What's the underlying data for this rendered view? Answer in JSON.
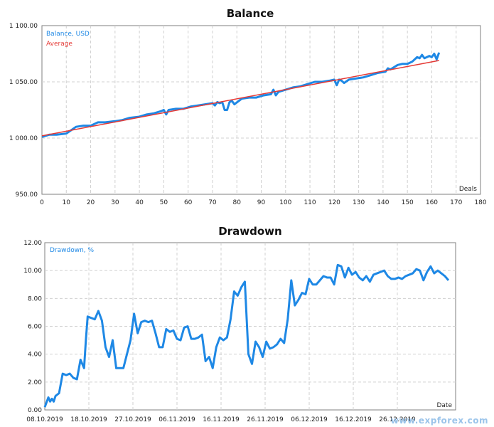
{
  "watermark": "www.expforex.com",
  "chart_data": [
    {
      "type": "line",
      "title": "Balance",
      "xlabel": "Deals",
      "ylabel": "",
      "xlim": [
        0,
        180
      ],
      "ylim": [
        950,
        1100
      ],
      "x_ticks": [
        "0",
        "10",
        "20",
        "30",
        "40",
        "50",
        "60",
        "70",
        "80",
        "90",
        "100",
        "110",
        "120",
        "130",
        "140",
        "150",
        "160",
        "170",
        "180"
      ],
      "y_ticks": [
        "950.00",
        "1 000.00",
        "1 050.00",
        "1 100.00"
      ],
      "grid": true,
      "legend_position": "top-left",
      "series": [
        {
          "name": "Balance, USD",
          "color": "#1e88e5",
          "x": [
            0,
            3,
            6,
            10,
            12,
            14,
            17,
            20,
            23,
            26,
            30,
            33,
            36,
            40,
            43,
            46,
            49,
            50,
            51,
            52,
            55,
            58,
            61,
            64,
            67,
            70,
            71,
            72,
            73,
            74,
            75,
            76,
            77,
            78,
            79,
            82,
            85,
            88,
            91,
            94,
            95,
            96,
            97,
            100,
            103,
            106,
            109,
            112,
            115,
            118,
            120,
            121,
            122,
            123,
            124,
            126,
            129,
            132,
            135,
            138,
            141,
            142,
            143,
            146,
            148,
            150,
            152,
            154,
            155,
            156,
            157,
            158,
            159,
            160,
            161,
            162,
            163
          ],
          "y": [
            1001,
            1003,
            1003,
            1004,
            1007,
            1010,
            1011,
            1011,
            1014,
            1014,
            1015,
            1016,
            1018,
            1019,
            1021,
            1022,
            1024,
            1025,
            1021,
            1025,
            1026,
            1026,
            1028,
            1029,
            1030,
            1031,
            1029,
            1032,
            1031,
            1032,
            1025,
            1025,
            1032,
            1033,
            1030,
            1035,
            1036,
            1036,
            1038,
            1039,
            1043,
            1038,
            1041,
            1043,
            1045,
            1046,
            1048,
            1050,
            1050,
            1051,
            1052,
            1047,
            1052,
            1051,
            1049,
            1052,
            1053,
            1054,
            1056,
            1058,
            1059,
            1062,
            1061,
            1065,
            1066,
            1066,
            1068,
            1072,
            1071,
            1074,
            1071,
            1072,
            1073,
            1072,
            1075,
            1070,
            1076
          ]
        },
        {
          "name": "Average",
          "color": "#e53935",
          "x": [
            0,
            163
          ],
          "y": [
            1002,
            1069
          ]
        }
      ]
    },
    {
      "type": "line",
      "title": "Drawdown",
      "xlabel": "Date",
      "ylabel": "",
      "ylim": [
        0,
        12
      ],
      "x_ticks": [
        "08.10.2019",
        "18.10.2019",
        "27.10.2019",
        "06.11.2019",
        "16.11.2019",
        "26.11.2019",
        "06.12.2019",
        "16.12.2019",
        "26.12.2019"
      ],
      "y_ticks": [
        "0.00",
        "2.00",
        "4.00",
        "6.00",
        "8.00",
        "10.00",
        "12.00"
      ],
      "grid": true,
      "legend_position": "top-left",
      "series": [
        {
          "name": "Drawdown, %",
          "color": "#1e88e5",
          "x": [
            0,
            1,
            1.5,
            2,
            2.5,
            3,
            4,
            5,
            6,
            7,
            8,
            9,
            10,
            11,
            11.5,
            12,
            13,
            14,
            15,
            16,
            17,
            18,
            19,
            20,
            21,
            22,
            23,
            24,
            25,
            26,
            27,
            28,
            29,
            30,
            31,
            32,
            33,
            34,
            35,
            36,
            37,
            38,
            39,
            40,
            41,
            42,
            43,
            44,
            45,
            46,
            47,
            48,
            49,
            50,
            51,
            52,
            53,
            54,
            55,
            56,
            57,
            58,
            59,
            60,
            61,
            62,
            63,
            64,
            65,
            66,
            67,
            68,
            69,
            70,
            71,
            72,
            73,
            74,
            75,
            76,
            77,
            78,
            79,
            80,
            81,
            82,
            83,
            84,
            85,
            86,
            87,
            88,
            89,
            90,
            91,
            92,
            93,
            94,
            95,
            96,
            97,
            98,
            99,
            100,
            101,
            102,
            103,
            104,
            105,
            106,
            107,
            108,
            109,
            110,
            111,
            112,
            113
          ],
          "y": [
            0.2,
            0.9,
            0.6,
            0.8,
            0.6,
            1.0,
            1.2,
            2.6,
            2.5,
            2.6,
            2.3,
            2.2,
            3.6,
            3.0,
            5.0,
            6.7,
            6.6,
            6.5,
            7.1,
            6.4,
            4.5,
            3.8,
            5.0,
            3.0,
            3.0,
            3.0,
            4.0,
            5.0,
            6.9,
            5.5,
            6.3,
            6.4,
            6.3,
            6.4,
            5.5,
            4.5,
            4.5,
            5.8,
            5.6,
            5.7,
            5.1,
            5.0,
            5.9,
            6.0,
            5.1,
            5.1,
            5.2,
            5.4,
            3.5,
            3.8,
            3.0,
            4.5,
            5.2,
            5.0,
            5.2,
            6.5,
            8.5,
            8.2,
            8.8,
            9.2,
            4.0,
            3.3,
            4.9,
            4.5,
            3.8,
            4.9,
            4.4,
            4.5,
            4.7,
            5.1,
            4.8,
            6.5,
            9.3,
            7.5,
            7.9,
            8.4,
            8.3,
            9.4,
            9.0,
            9.0,
            9.3,
            9.6,
            9.5,
            9.5,
            9.0,
            10.4,
            10.3,
            9.5,
            10.2,
            9.7,
            9.9,
            9.5,
            9.3,
            9.6,
            9.2,
            9.7,
            9.8,
            9.9,
            10.0,
            9.6,
            9.4,
            9.4,
            9.5,
            9.4,
            9.6,
            9.7,
            9.8,
            10.1,
            10.0,
            9.3,
            9.9,
            10.3,
            9.8,
            10.0,
            9.8,
            9.6,
            9.3
          ]
        }
      ]
    }
  ]
}
